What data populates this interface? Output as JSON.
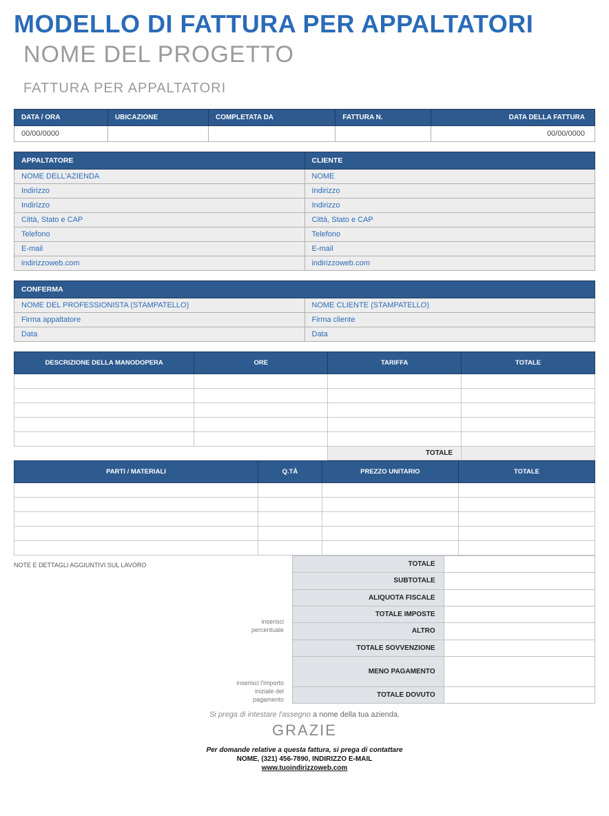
{
  "title": "MODELLO DI FATTURA PER APPALTATORI",
  "project": "NOME DEL PROGETTO",
  "subtitle": "FATTURA PER APPALTATORI",
  "info": {
    "headers": [
      "DATA / ORA",
      "UBICAZIONE",
      "COMPLETATA DA",
      "FATTURA N.",
      "DATA DELLA FATTURA"
    ],
    "values": [
      "00/00/0000",
      "",
      "",
      "",
      "00/00/0000"
    ]
  },
  "contractor": {
    "header": "APPALTATORE",
    "rows": [
      "NOME DELL'AZIENDA",
      "Indirizzo",
      "Indirizzo",
      "Città, Stato e CAP",
      "Telefono",
      "E-mail",
      "indirizzoweb.com"
    ]
  },
  "client": {
    "header": "CLIENTE",
    "rows": [
      "NOME",
      "Indirizzo",
      "Indirizzo",
      "Città, Stato e CAP",
      "Telefono",
      "E-mail",
      "indirizzoweb.com"
    ]
  },
  "confirm": {
    "header": "CONFERMA",
    "left": [
      "NOME DEL PROFESSIONISTA (STAMPATELLO)",
      "Firma appaltatore",
      "Data"
    ],
    "right": [
      "NOME CLIENTE (STAMPATELLO)",
      "Firma cliente",
      "Data"
    ]
  },
  "labor": {
    "headers": [
      "DESCRIZIONE DELLA MANODOPERA",
      "ORE",
      "TARIFFA",
      "TOTALE"
    ],
    "total_label": "TOTALE",
    "row_count": 5
  },
  "parts": {
    "headers": [
      "PARTI / MATERIALI",
      "Q.TÀ",
      "PREZZO UNITARIO",
      "TOTALE"
    ],
    "row_count": 5
  },
  "notes_label": "NOTE E DETTAGLI AGGIUNTIVI SUL LAVORO",
  "helpers": {
    "percent": "inserisci\npercentuale",
    "initial": "inserisci l'importo\niniziale del\npagamento"
  },
  "summary": {
    "rows": [
      {
        "label": "TOTALE"
      },
      {
        "label": "SUBTOTALE"
      },
      {
        "label": "ALIQUOTA FISCALE"
      },
      {
        "label": "TOTALE IMPOSTE"
      },
      {
        "label": "ALTRO"
      },
      {
        "label": "TOTALE SOVVENZIONE"
      },
      {
        "label": "MENO PAGAMENTO",
        "tall": true
      },
      {
        "label": "TOTALE DOVUTO"
      }
    ]
  },
  "footer": {
    "check_italic": "Si prega di intestare l'assegno",
    "check_regular": " a nome della tua azienda.",
    "thanks": "GRAZIE",
    "contact1": "Per domande relative a questa fattura, si prega di contattare",
    "contact2": "NOME, (321) 456-7890, INDIRIZZO E-MAIL",
    "contact3": "www.tuoindirizzoweb.com"
  }
}
